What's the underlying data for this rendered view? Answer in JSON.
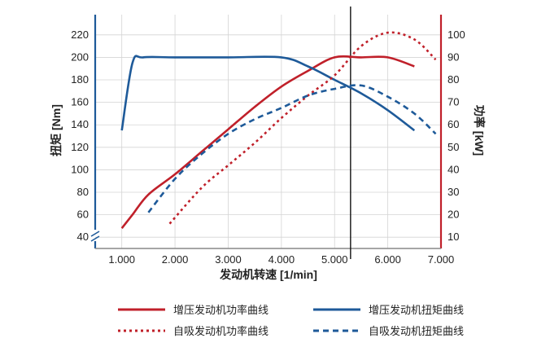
{
  "chart_data": {
    "type": "line",
    "xlabel": "发动机转速 [1/min]",
    "ylabel_left": "扭矩 [Nm]",
    "ylabel_right": "功率 [kW]",
    "x_ticks": [
      "1.000",
      "2.000",
      "3.000",
      "4.000",
      "5.000",
      "6.000",
      "7.000"
    ],
    "x_tick_values": [
      1000,
      2000,
      3000,
      4000,
      5000,
      6000,
      7000
    ],
    "y_left_ticks": [
      "40",
      "60",
      "80",
      "100",
      "120",
      "140",
      "160",
      "180",
      "200",
      "220"
    ],
    "y_left_tick_values": [
      40,
      60,
      80,
      100,
      120,
      140,
      160,
      180,
      200,
      220
    ],
    "y_right_ticks": [
      "10",
      "20",
      "30",
      "40",
      "50",
      "60",
      "70",
      "80",
      "90",
      "100"
    ],
    "y_right_tick_values": [
      10,
      20,
      30,
      40,
      50,
      60,
      70,
      80,
      90,
      100
    ],
    "xlim": [
      500,
      7000
    ],
    "ylim_left": [
      30,
      238
    ],
    "ylim_right": [
      5,
      109
    ],
    "marker_line_x": 5300,
    "series": [
      {
        "name": "增压发动机功率曲线",
        "axis": "right",
        "color": "#c0202a",
        "dash": "solid",
        "x": [
          1000,
          1200,
          1500,
          2000,
          2500,
          3000,
          3500,
          4000,
          4500,
          5000,
          5500,
          6000,
          6500
        ],
        "y": [
          14,
          20,
          29,
          38,
          48,
          58,
          68,
          77,
          84,
          90,
          90,
          90,
          86
        ]
      },
      {
        "name": "增压发动机扭矩曲线",
        "axis": "left",
        "color": "#1e5a99",
        "dash": "solid",
        "x": [
          1000,
          1200,
          1400,
          2000,
          3000,
          4000,
          4500,
          5000,
          5500,
          6000,
          6500
        ],
        "y": [
          135,
          195,
          200,
          200,
          200,
          200,
          192,
          180,
          168,
          153,
          135
        ]
      },
      {
        "name": "自吸发动机功率曲线",
        "axis": "right",
        "color": "#c0202a",
        "dash": "dotted",
        "x": [
          1900,
          2500,
          3000,
          3500,
          4000,
          4500,
          5000,
          5500,
          6000,
          6500,
          6900
        ],
        "y": [
          16,
          32,
          42,
          52,
          63,
          73,
          82,
          95,
          101,
          98,
          89
        ]
      },
      {
        "name": "自吸发动机扭矩曲线",
        "axis": "left",
        "color": "#1e5a99",
        "dash": "dashed",
        "x": [
          1500,
          2000,
          2500,
          3000,
          3500,
          4000,
          4500,
          5000,
          5500,
          6000,
          6500,
          6900
        ],
        "y": [
          62,
          92,
          114,
          132,
          145,
          155,
          166,
          172,
          175,
          165,
          150,
          132
        ]
      }
    ],
    "legend_placement": "bottom"
  }
}
